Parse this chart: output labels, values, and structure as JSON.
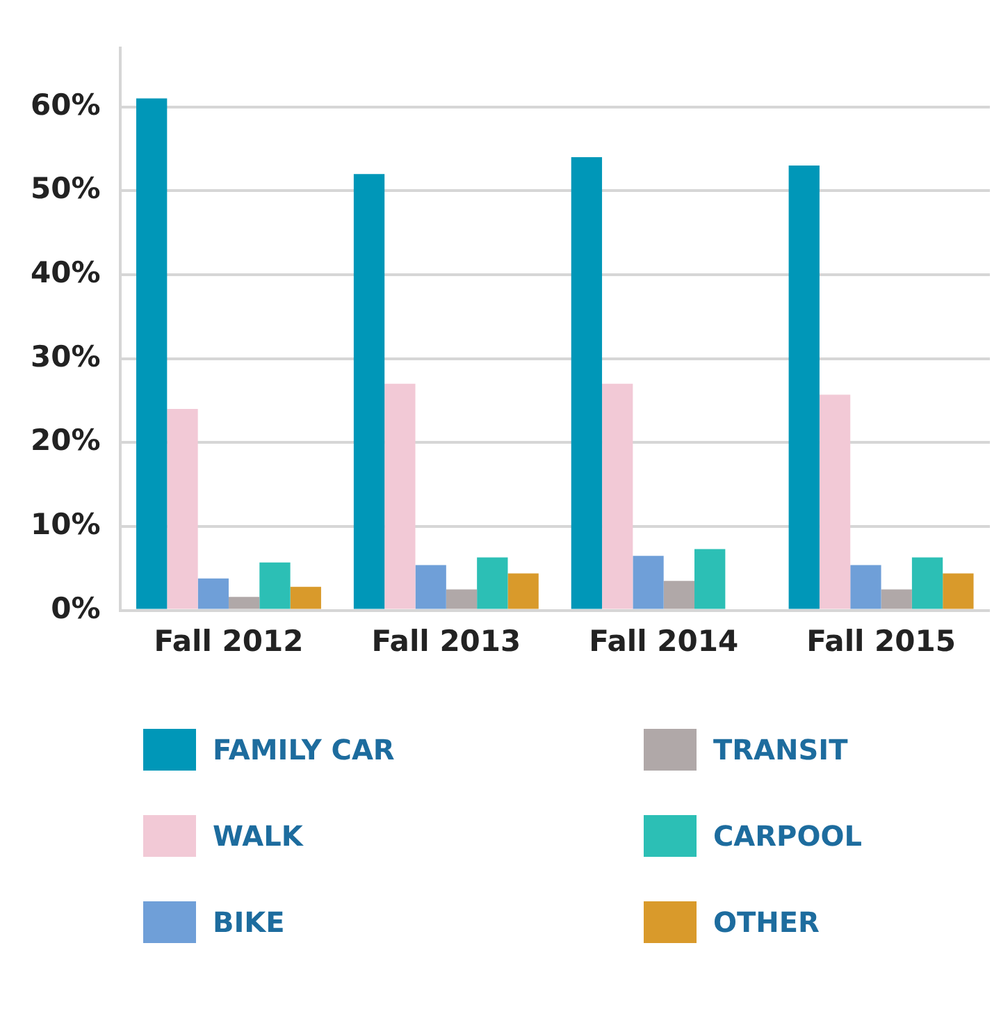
{
  "chart_data": {
    "type": "bar",
    "categories": [
      "Fall 2012",
      "Fall 2013",
      "Fall 2014",
      "Fall 2015"
    ],
    "series": [
      {
        "name": "FAMILY CAR",
        "color": "#0097b8",
        "values": [
          61,
          52,
          54,
          53
        ]
      },
      {
        "name": "WALK",
        "color": "#f2c9d6",
        "values": [
          24,
          27,
          27,
          25.7
        ]
      },
      {
        "name": "BIKE",
        "color": "#6f9fd8",
        "values": [
          3.8,
          5.4,
          6.5,
          5.4
        ]
      },
      {
        "name": "TRANSIT",
        "color": "#b0a8a8",
        "values": [
          1.6,
          2.5,
          3.5,
          2.5
        ]
      },
      {
        "name": "CARPOOL",
        "color": "#2cbfb5",
        "values": [
          5.7,
          6.3,
          7.3,
          6.3
        ]
      },
      {
        "name": "OTHER",
        "color": "#d99a2b",
        "values": [
          2.8,
          4.4,
          null,
          4.4
        ]
      }
    ],
    "ylim": [
      0,
      67
    ],
    "yticks": [
      {
        "value": 0,
        "label": "0%"
      },
      {
        "value": 10,
        "label": "10%"
      },
      {
        "value": 20,
        "label": "20%"
      },
      {
        "value": 30,
        "label": "30%"
      },
      {
        "value": 40,
        "label": "40%"
      },
      {
        "value": 50,
        "label": "50%"
      },
      {
        "value": 60,
        "label": "60%"
      }
    ],
    "grid": "y",
    "legend": "bottom"
  }
}
